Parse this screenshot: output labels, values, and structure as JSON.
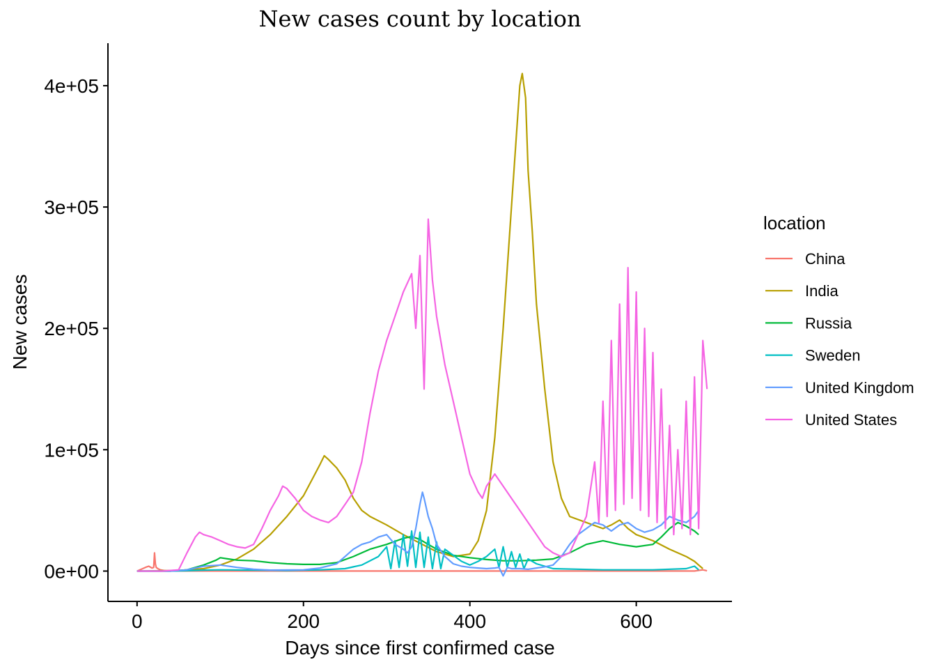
{
  "chart_data": {
    "type": "line",
    "title": "New cases count by location",
    "xlabel": "Days since first confirmed case",
    "ylabel": "New cases",
    "xlim": [
      -35,
      715
    ],
    "ylim": [
      -25000,
      435000
    ],
    "xticks": [
      0,
      200,
      400,
      600
    ],
    "xtick_labels": [
      "0",
      "200",
      "400",
      "600"
    ],
    "yticks": [
      0,
      100000,
      200000,
      300000,
      400000
    ],
    "ytick_labels": [
      "0e+00",
      "1e+05",
      "2e+05",
      "3e+05",
      "4e+05"
    ],
    "grid": false,
    "legend": {
      "title": "location",
      "position": "right"
    },
    "series": [
      {
        "name": "China",
        "color": "#F8766D",
        "x": [
          0,
          5,
          10,
          14,
          18,
          20,
          21,
          22,
          23,
          25,
          28,
          32,
          36,
          40,
          45,
          50,
          60,
          100,
          200,
          300,
          400,
          500,
          600,
          670,
          680,
          685
        ],
        "y": [
          0,
          1500,
          3000,
          4000,
          2500,
          3000,
          15000,
          6000,
          3000,
          2000,
          1000,
          500,
          200,
          100,
          50,
          50,
          50,
          50,
          50,
          50,
          50,
          50,
          50,
          50,
          1000,
          200
        ]
      },
      {
        "name": "India",
        "color": "#B79F00",
        "x": [
          0,
          50,
          80,
          100,
          120,
          140,
          160,
          180,
          200,
          210,
          220,
          225,
          230,
          240,
          250,
          260,
          270,
          280,
          300,
          320,
          340,
          360,
          380,
          400,
          410,
          420,
          430,
          440,
          450,
          455,
          460,
          463,
          467,
          470,
          475,
          480,
          490,
          500,
          510,
          520,
          540,
          560,
          570,
          580,
          590,
          600,
          620,
          640,
          660,
          670,
          675,
          680
        ],
        "y": [
          0,
          500,
          2000,
          5000,
          10000,
          18000,
          30000,
          45000,
          62000,
          75000,
          88000,
          95000,
          92000,
          85000,
          75000,
          60000,
          50000,
          45000,
          38000,
          30000,
          23000,
          16000,
          12000,
          14000,
          25000,
          50000,
          110000,
          200000,
          300000,
          350000,
          400000,
          410000,
          390000,
          330000,
          280000,
          220000,
          150000,
          90000,
          60000,
          45000,
          40000,
          35000,
          38000,
          42000,
          35000,
          30000,
          25000,
          18000,
          12000,
          8000,
          5000,
          2000
        ]
      },
      {
        "name": "Russia",
        "color": "#00BA38",
        "x": [
          0,
          40,
          60,
          80,
          95,
          100,
          110,
          120,
          140,
          160,
          180,
          200,
          220,
          240,
          260,
          280,
          300,
          320,
          330,
          340,
          350,
          360,
          380,
          400,
          420,
          440,
          460,
          480,
          500,
          520,
          540,
          560,
          580,
          600,
          620,
          630,
          640,
          650,
          660,
          670,
          675
        ],
        "y": [
          0,
          0,
          1000,
          5000,
          9000,
          11000,
          10000,
          9000,
          8500,
          7000,
          6000,
          5500,
          5500,
          7000,
          12000,
          18000,
          22000,
          27000,
          28500,
          26000,
          22000,
          18000,
          13000,
          11000,
          9500,
          8500,
          8500,
          9000,
          10000,
          15000,
          22000,
          25000,
          22000,
          20000,
          22000,
          28000,
          35000,
          40000,
          37000,
          33000,
          30000
        ]
      },
      {
        "name": "Sweden",
        "color": "#00BFC4",
        "x": [
          0,
          40,
          60,
          80,
          100,
          140,
          180,
          220,
          250,
          270,
          290,
          300,
          305,
          310,
          315,
          320,
          325,
          330,
          335,
          340,
          345,
          350,
          355,
          360,
          365,
          370,
          380,
          390,
          400,
          410,
          420,
          430,
          435,
          440,
          445,
          450,
          455,
          460,
          465,
          470,
          480,
          500,
          560,
          620,
          660,
          670,
          675
        ],
        "y": [
          0,
          0,
          300,
          800,
          1000,
          800,
          500,
          1000,
          2000,
          5000,
          12000,
          20000,
          2000,
          25000,
          3000,
          30000,
          4000,
          33000,
          3000,
          32000,
          3000,
          28000,
          2000,
          24000,
          2000,
          18000,
          13000,
          8000,
          5000,
          8000,
          12000,
          18000,
          3000,
          20000,
          3000,
          16000,
          3000,
          14000,
          2000,
          10000,
          6000,
          2000,
          1000,
          1000,
          2000,
          4000,
          1000
        ]
      },
      {
        "name": "United Kingdom",
        "color": "#619CFF",
        "x": [
          0,
          40,
          60,
          80,
          100,
          120,
          140,
          160,
          200,
          220,
          240,
          250,
          260,
          270,
          280,
          290,
          300,
          310,
          320,
          325,
          330,
          335,
          340,
          343,
          345,
          350,
          355,
          360,
          370,
          380,
          390,
          400,
          410,
          420,
          430,
          435,
          440,
          445,
          450,
          460,
          470,
          480,
          490,
          500,
          510,
          520,
          530,
          540,
          550,
          560,
          570,
          580,
          590,
          600,
          610,
          620,
          630,
          640,
          650,
          660,
          670,
          675
        ],
        "y": [
          0,
          0,
          1000,
          4000,
          5000,
          3000,
          1500,
          800,
          1000,
          2500,
          6000,
          12000,
          18000,
          22000,
          24000,
          28000,
          30000,
          22000,
          18000,
          15000,
          20000,
          35000,
          55000,
          65000,
          60000,
          45000,
          35000,
          22000,
          12000,
          6000,
          4000,
          3000,
          2500,
          2000,
          2500,
          3000,
          -4000,
          3000,
          2000,
          2000,
          1500,
          2500,
          3500,
          5000,
          12000,
          22000,
          30000,
          35000,
          40000,
          38000,
          33000,
          38000,
          40000,
          35000,
          32000,
          34000,
          38000,
          45000,
          42000,
          40000,
          45000,
          50000
        ]
      },
      {
        "name": "United States",
        "color": "#F564E3",
        "x": [
          0,
          30,
          50,
          60,
          70,
          75,
          80,
          90,
          100,
          110,
          120,
          130,
          140,
          150,
          160,
          170,
          175,
          180,
          185,
          190,
          200,
          210,
          220,
          230,
          240,
          250,
          260,
          270,
          280,
          290,
          300,
          310,
          320,
          330,
          335,
          340,
          345,
          350,
          355,
          360,
          370,
          380,
          390,
          400,
          410,
          415,
          420,
          430,
          440,
          450,
          460,
          470,
          480,
          490,
          500,
          510,
          520,
          530,
          540,
          550,
          555,
          560,
          565,
          570,
          575,
          580,
          585,
          590,
          595,
          600,
          605,
          610,
          615,
          620,
          625,
          630,
          635,
          640,
          645,
          650,
          655,
          660,
          665,
          670,
          675,
          680,
          685
        ],
        "y": [
          0,
          0,
          1000,
          15000,
          28000,
          32000,
          30000,
          28000,
          25000,
          22000,
          20000,
          19000,
          22000,
          35000,
          50000,
          62000,
          70000,
          68000,
          64000,
          60000,
          50000,
          45000,
          42000,
          40000,
          45000,
          55000,
          65000,
          90000,
          130000,
          165000,
          190000,
          210000,
          230000,
          245000,
          200000,
          260000,
          150000,
          290000,
          240000,
          210000,
          170000,
          140000,
          110000,
          80000,
          65000,
          60000,
          70000,
          80000,
          70000,
          60000,
          50000,
          40000,
          30000,
          20000,
          15000,
          12000,
          15000,
          30000,
          45000,
          90000,
          40000,
          140000,
          45000,
          190000,
          50000,
          220000,
          55000,
          250000,
          60000,
          230000,
          50000,
          200000,
          45000,
          180000,
          40000,
          150000,
          35000,
          120000,
          30000,
          100000,
          35000,
          140000,
          30000,
          160000,
          35000,
          190000,
          150000
        ]
      }
    ]
  }
}
